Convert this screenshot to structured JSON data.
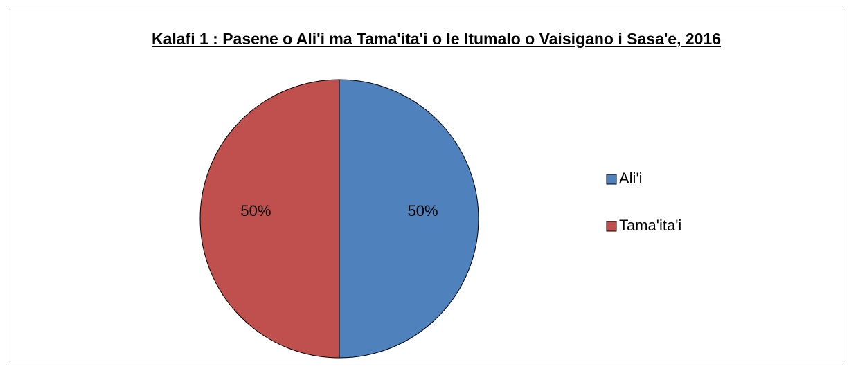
{
  "chart_data": {
    "type": "pie",
    "title": "Kalafi 1 : Pasene o Ali'i ma Tama'ita'i o le Itumalo o Vaisigano i Sasa'e, 2016",
    "categories": [
      "Ali'i",
      "Tama'ita'i"
    ],
    "values": [
      50,
      50
    ],
    "value_labels": [
      "50%",
      "50%"
    ],
    "colors": [
      "#4f81bd",
      "#c0504d"
    ],
    "legend": "right"
  }
}
